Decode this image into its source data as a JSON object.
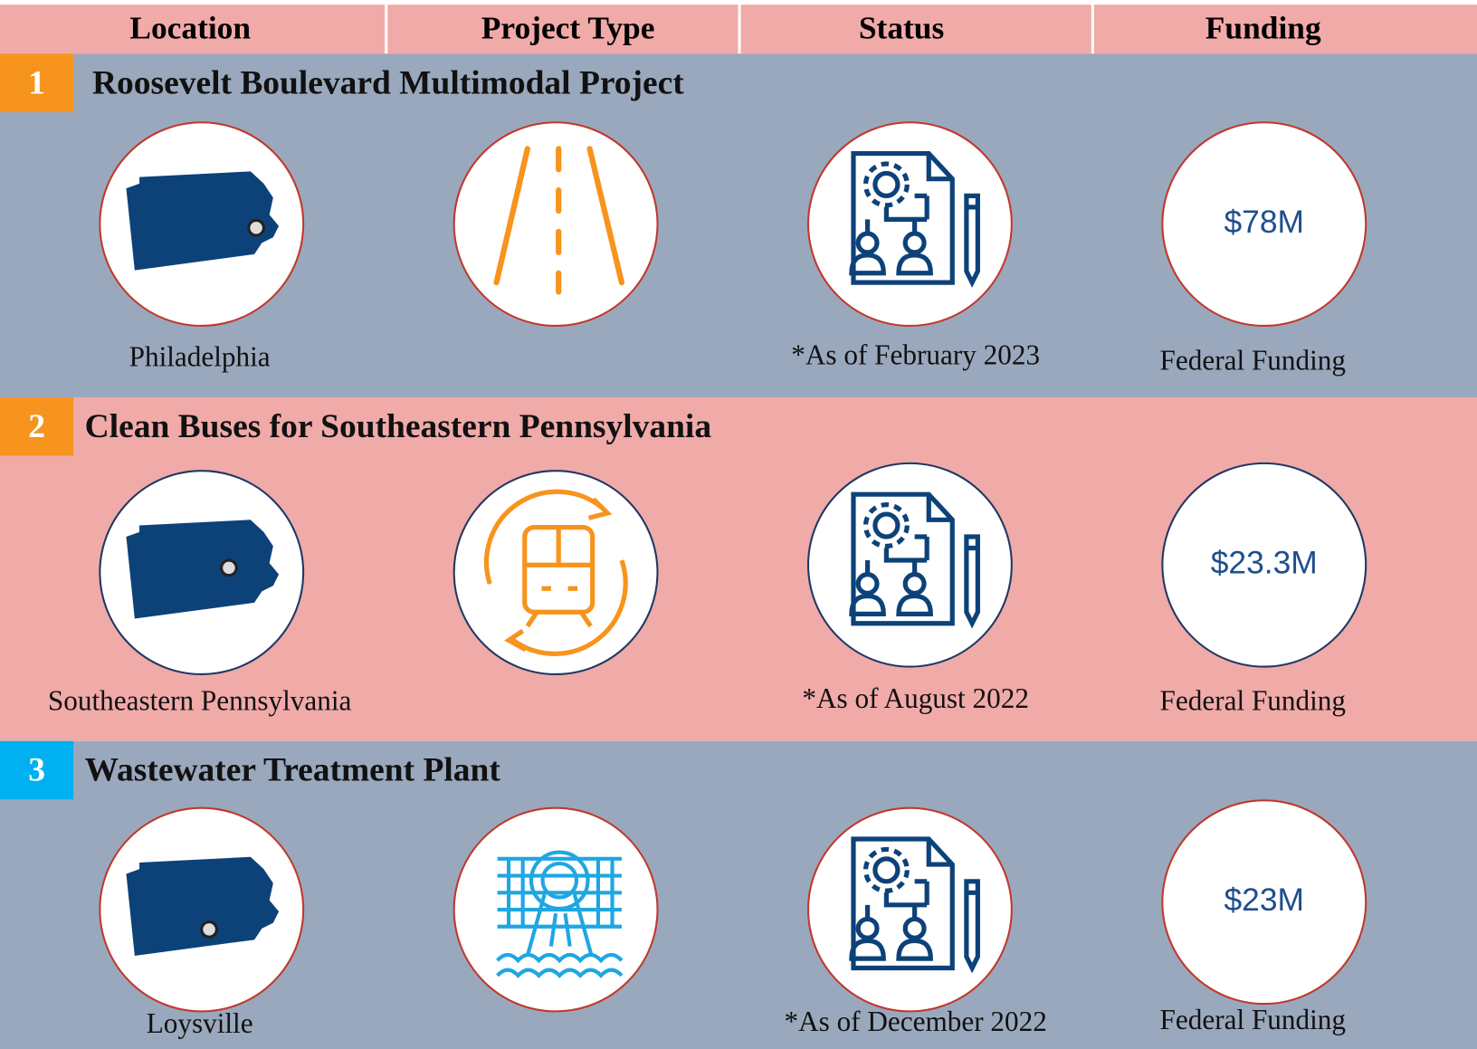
{
  "header": {
    "columns": [
      "Location",
      "Project Type",
      "Status",
      "Funding"
    ]
  },
  "projects": [
    {
      "number": "1",
      "title": "Roosevelt Boulevard Multimodal Project",
      "location": "Philadelphia",
      "status": "*As of February 2023",
      "funding": "$78M",
      "funding_label": "Federal Funding"
    },
    {
      "number": "2",
      "title": "Clean Buses for Southeastern Pennsylvania",
      "location": "Southeastern Pennsylvania",
      "status": "*As of August 2022",
      "funding": "$23.3M",
      "funding_label": "Federal Funding"
    },
    {
      "number": "3",
      "title": "Wastewater Treatment Plant",
      "location": "Loysville",
      "status": "*As of December 2022",
      "funding": "$23M",
      "funding_label": "Federal Funding"
    }
  ]
}
